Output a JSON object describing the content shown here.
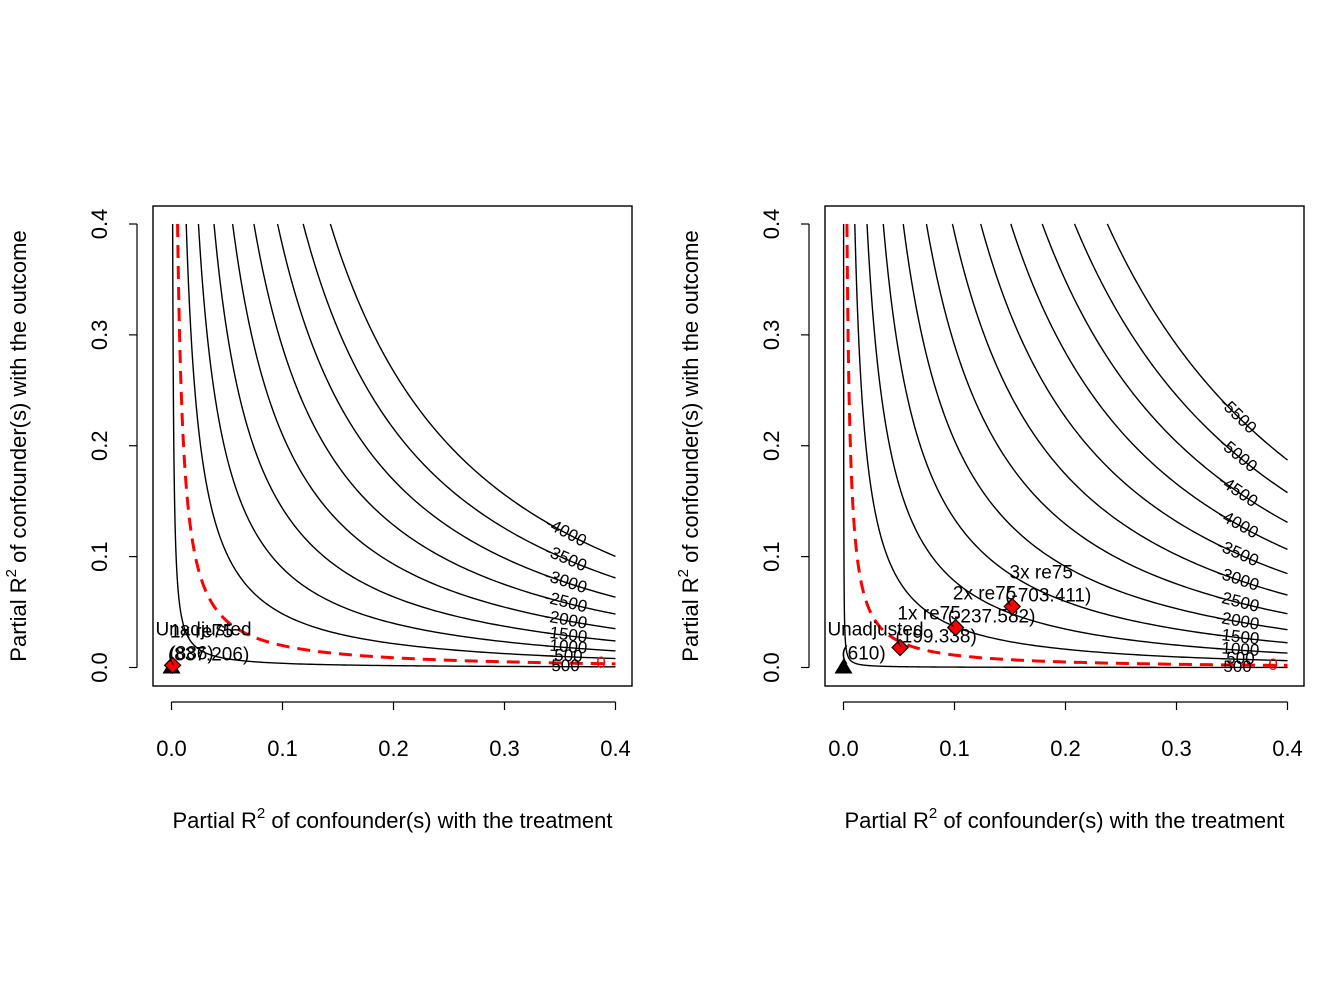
{
  "axis_label_x_prefix": "Partial R",
  "axis_label_x_suffix": " of confounder(s) with the treatment",
  "axis_label_y_prefix": "Partial R",
  "axis_label_y_suffix": " of confounder(s) with the outcome",
  "axis_label_sup": "2",
  "colors": {
    "contour": "#000000",
    "threshold": "#ff0000",
    "bound_marker": "#ff0000",
    "unadjusted_marker": "#000000"
  },
  "chart_data": [
    {
      "type": "contour",
      "xlim": [
        0,
        0.4
      ],
      "ylim": [
        0,
        0.4
      ],
      "x_ticks": [
        "0.0",
        "0.1",
        "0.2",
        "0.3",
        "0.4"
      ],
      "y_ticks": [
        "0.0",
        "0.1",
        "0.2",
        "0.3",
        "0.4"
      ],
      "estimate": 886,
      "scale": 18900,
      "threshold": 0,
      "levels": [
        500,
        -500,
        -1000,
        -1500,
        -2000,
        -2500,
        -3000,
        -3500,
        -4000
      ],
      "level_labels": [
        "500",
        "-500",
        "-1000",
        "-1500",
        "-2000",
        "-2500",
        "-3000",
        "-3500",
        "-4000"
      ],
      "threshold_label": "0",
      "unadjusted": {
        "x": 0,
        "y": 0,
        "label": "Unadjusted",
        "value_label": "(886)"
      },
      "bounds": [
        {
          "x": 0.001,
          "y": 0.002,
          "label": "1x re75",
          "value_label": "(837.206)"
        }
      ]
    },
    {
      "type": "contour",
      "xlim": [
        0,
        0.4
      ],
      "ylim": [
        0,
        0.4
      ],
      "x_ticks": [
        "0.0",
        "0.1",
        "0.2",
        "0.3",
        "0.4"
      ],
      "y_ticks": [
        "0.0",
        "0.1",
        "0.2",
        "0.3",
        "0.4"
      ],
      "estimate": 610,
      "scale": 17300,
      "threshold": 0,
      "levels": [
        500,
        -500,
        -1000,
        -1500,
        -2000,
        -2500,
        -3000,
        -3500,
        -4000,
        -4500,
        -5000,
        -5500
      ],
      "level_labels": [
        "500",
        "-500",
        "-1000",
        "-1500",
        "-2000",
        "-2500",
        "-3000",
        "-3500",
        "-4000",
        "-4500",
        "-5000",
        "-5500"
      ],
      "threshold_label": "0",
      "unadjusted": {
        "x": 0,
        "y": 0,
        "label": "Unadjusted",
        "value_label": "(610)"
      },
      "bounds": [
        {
          "x": 0.051,
          "y": 0.018,
          "label": "1x re75",
          "value_label": "(199.338)"
        },
        {
          "x": 0.101,
          "y": 0.036,
          "label": "2x re75",
          "value_label": "(-237.582)"
        },
        {
          "x": 0.152,
          "y": 0.055,
          "label": "3x re75",
          "value_label": "(-703.411)"
        }
      ]
    }
  ]
}
